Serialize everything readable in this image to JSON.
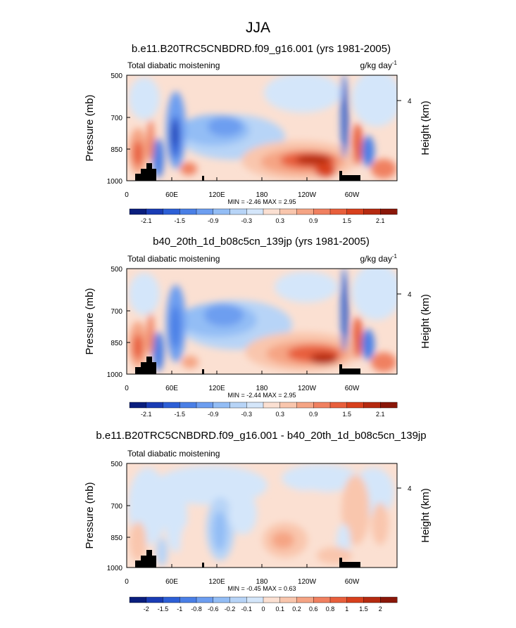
{
  "page_title": "JJA",
  "chart_data": [
    {
      "type": "heatmap",
      "title": "b.e11.B20TRC5CNBDRD.f09_g16.001 (yrs 1981-2005)",
      "left_label": "Total diabatic moistening",
      "units_base": "g/kg day",
      "units_exp": "-1",
      "ylabel": "Pressure (mb)",
      "ylabel_right": "Height (km)",
      "xlabel": "",
      "y_ticks": [
        "500",
        "700",
        "850",
        "1000"
      ],
      "y_right_ticks": [
        "4"
      ],
      "x_ticks": [
        "0",
        "60E",
        "120E",
        "180",
        "120W",
        "60W"
      ],
      "stats": "MIN = -2.46   MAX =  2.95",
      "colorbar_labels": [
        "-2.1",
        "-1.5",
        "-0.9",
        "-0.3",
        "0.3",
        "0.9",
        "1.5",
        "2.1"
      ],
      "colorbar_colors": [
        "#0a1e7d",
        "#1a3cb4",
        "#2d5fd6",
        "#4a7fe6",
        "#6d9ef0",
        "#93bdf5",
        "#b7d4f7",
        "#d4e6fa",
        "#fbe0d2",
        "#f9c6ad",
        "#f5a484",
        "#f08060",
        "#e85f3c",
        "#d8401d",
        "#b52a10",
        "#8a1709"
      ]
    },
    {
      "type": "heatmap",
      "title": "b40_20th_1d_b08c5cn_139jp (yrs 1981-2005)",
      "left_label": "Total diabatic moistening",
      "units_base": "g/kg day",
      "units_exp": "-1",
      "ylabel": "Pressure (mb)",
      "ylabel_right": "Height (km)",
      "xlabel": "",
      "y_ticks": [
        "500",
        "700",
        "850",
        "1000"
      ],
      "y_right_ticks": [
        "4"
      ],
      "x_ticks": [
        "0",
        "60E",
        "120E",
        "180",
        "120W",
        "60W"
      ],
      "stats": "MIN = -2.44   MAX =  2.95",
      "colorbar_labels": [
        "-2.1",
        "-1.5",
        "-0.9",
        "-0.3",
        "0.3",
        "0.9",
        "1.5",
        "2.1"
      ],
      "colorbar_colors": [
        "#0a1e7d",
        "#1a3cb4",
        "#2d5fd6",
        "#4a7fe6",
        "#6d9ef0",
        "#93bdf5",
        "#b7d4f7",
        "#d4e6fa",
        "#fbe0d2",
        "#f9c6ad",
        "#f5a484",
        "#f08060",
        "#e85f3c",
        "#d8401d",
        "#b52a10",
        "#8a1709"
      ]
    },
    {
      "type": "heatmap",
      "title": "b.e11.B20TRC5CNBDRD.f09_g16.001 - b40_20th_1d_b08c5cn_139jp",
      "left_label": "Total diabatic moistening",
      "units_base": "",
      "units_exp": "",
      "ylabel": "Pressure (mb)",
      "ylabel_right": "Height (km)",
      "xlabel": "",
      "y_ticks": [
        "500",
        "700",
        "850",
        "1000"
      ],
      "y_right_ticks": [
        "4"
      ],
      "x_ticks": [
        "0",
        "60E",
        "120E",
        "180",
        "120W",
        "60W"
      ],
      "stats": "MIN = -0.45   MAX =  0.63",
      "colorbar_labels": [
        "-2",
        "-1.5",
        "-1",
        "-0.8",
        "-0.6",
        "-0.2",
        "-0.1",
        "0",
        "0.1",
        "0.2",
        "0.6",
        "0.8",
        "1",
        "1.5",
        "2"
      ],
      "colorbar_colors": [
        "#0a1e7d",
        "#1a3cb4",
        "#2d5fd6",
        "#4a7fe6",
        "#6d9ef0",
        "#93bdf5",
        "#b7d4f7",
        "#d4e6fa",
        "#fbe0d2",
        "#f9c6ad",
        "#f5a484",
        "#f08060",
        "#e85f3c",
        "#d8401d",
        "#b52a10",
        "#8a1709"
      ]
    }
  ]
}
